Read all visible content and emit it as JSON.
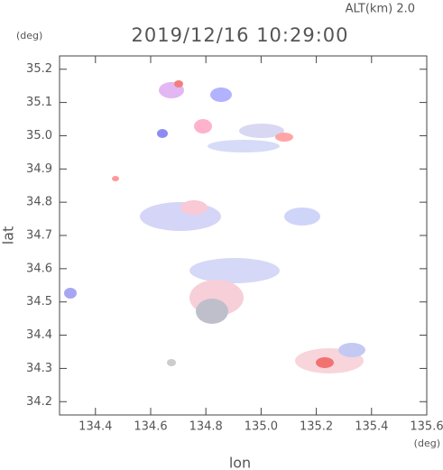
{
  "chart_data": {
    "type": "map",
    "title": "2019/12/16 10:29:00",
    "subtitle": "ALT(km) 2.0",
    "xlabel": "lon",
    "ylabel": "lat",
    "xunit": "(deg)",
    "yunit": "(deg)",
    "xlim": [
      134.27,
      135.6
    ],
    "ylim": [
      34.16,
      35.24
    ],
    "xticks": [
      134.4,
      134.6,
      134.8,
      {
        "value": 135,
        "label": "135.0"
      },
      135.2,
      135.4,
      135.6
    ],
    "yticks": [
      34.2,
      34.3,
      34.4,
      34.5,
      34.6,
      34.7,
      34.8,
      34.9,
      {
        "value": 35,
        "label": "35.0"
      },
      35.1,
      35.2
    ]
  }
}
